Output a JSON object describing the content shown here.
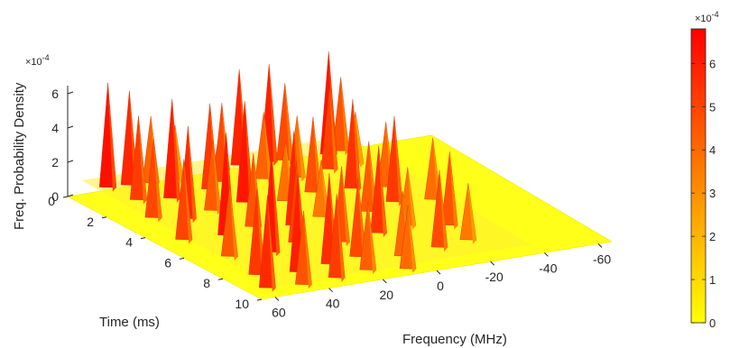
{
  "chart_data": {
    "type": "surface",
    "xlabel": "Frequency (MHz)",
    "ylabel": "Time (ms)",
    "zlabel": "Freq. Probability Density",
    "z_multiplier_label": "×10",
    "z_multiplier_exponent": "-4",
    "x_ticks": [
      "60",
      "40",
      "20",
      "0",
      "-20",
      "-40",
      "-60"
    ],
    "x_tick_values": [
      60,
      40,
      20,
      0,
      -20,
      -40,
      -60
    ],
    "y_ticks": [
      "0",
      "2",
      "4",
      "6",
      "8",
      "10"
    ],
    "y_tick_values": [
      0,
      2,
      4,
      6,
      8,
      10
    ],
    "z_ticks": [
      "0",
      "2",
      "4",
      "6"
    ],
    "z_tick_values": [
      0,
      2,
      4,
      6
    ],
    "xlim": [
      -65,
      65
    ],
    "ylim": [
      0,
      10
    ],
    "zlim": [
      0,
      6.5
    ],
    "colormap": "autumn (yellow to red, reversed)",
    "colorbar": {
      "ticks": [
        "0",
        "1",
        "2",
        "3",
        "4",
        "5",
        "6"
      ],
      "tick_values": [
        0,
        1,
        2,
        3,
        4,
        5,
        6
      ],
      "range": [
        0,
        6.8
      ],
      "multiplier_label": "×10",
      "multiplier_exponent": "-4",
      "low_color": "#ffff00",
      "high_color": "#ff0000"
    },
    "description_note": "Baseline density near 0; many sharp spikes between roughly -35 and 60 MHz across the full time span, peaks up to about 6.5e-4.",
    "peaks": [
      {
        "f": 52,
        "t": 0.2,
        "z": 6.4
      },
      {
        "f": 45,
        "t": 0.3,
        "z": 5.8
      },
      {
        "f": 38,
        "t": 0.4,
        "z": 4.2
      },
      {
        "f": 30,
        "t": 0.5,
        "z": 3.5
      },
      {
        "f": 12,
        "t": 0.3,
        "z": 3.2
      },
      {
        "f": 5,
        "t": 0.2,
        "z": 5.9
      },
      {
        "f": -5,
        "t": 0.3,
        "z": 6.0
      },
      {
        "f": -10,
        "t": 0.4,
        "z": 4.8
      },
      {
        "f": -25,
        "t": 0.5,
        "z": 6.3
      },
      {
        "f": -30,
        "t": 0.4,
        "z": 4.6
      },
      {
        "f": 50,
        "t": 1.5,
        "z": 5.2
      },
      {
        "f": 40,
        "t": 1.8,
        "z": 6.1
      },
      {
        "f": 25,
        "t": 1.6,
        "z": 5.3
      },
      {
        "f": 18,
        "t": 1.2,
        "z": 4.9
      },
      {
        "f": 5,
        "t": 1.5,
        "z": 4.2
      },
      {
        "f": -5,
        "t": 1.8,
        "z": 3.9
      },
      {
        "f": -18,
        "t": 1.6,
        "z": 5.1
      },
      {
        "f": -28,
        "t": 1.5,
        "z": 3.3
      },
      {
        "f": 55,
        "t": 3.0,
        "z": 4.9
      },
      {
        "f": 46,
        "t": 3.5,
        "z": 5.7
      },
      {
        "f": 35,
        "t": 3.2,
        "z": 4.4
      },
      {
        "f": 22,
        "t": 3.0,
        "z": 6.2
      },
      {
        "f": 10,
        "t": 3.4,
        "z": 3.8
      },
      {
        "f": -2,
        "t": 3.1,
        "z": 4.7
      },
      {
        "f": -15,
        "t": 3.3,
        "z": 5.5
      },
      {
        "f": -25,
        "t": 3.6,
        "z": 4.1
      },
      {
        "f": 58,
        "t": 5.0,
        "z": 5.0
      },
      {
        "f": 44,
        "t": 5.2,
        "z": 6.3
      },
      {
        "f": 32,
        "t": 4.9,
        "z": 4.6
      },
      {
        "f": 20,
        "t": 5.3,
        "z": 5.8
      },
      {
        "f": 8,
        "t": 5.0,
        "z": 3.6
      },
      {
        "f": -8,
        "t": 5.2,
        "z": 4.4
      },
      {
        "f": -20,
        "t": 4.8,
        "z": 5.3
      },
      {
        "f": -32,
        "t": 5.1,
        "z": 3.9
      },
      {
        "f": 54,
        "t": 6.8,
        "z": 4.5
      },
      {
        "f": 40,
        "t": 7.0,
        "z": 6.2
      },
      {
        "f": 28,
        "t": 6.6,
        "z": 5.1
      },
      {
        "f": 15,
        "t": 7.1,
        "z": 4.7
      },
      {
        "f": 0,
        "t": 6.9,
        "z": 5.4
      },
      {
        "f": -12,
        "t": 6.7,
        "z": 3.7
      },
      {
        "f": -24,
        "t": 7.2,
        "z": 4.6
      },
      {
        "f": 56,
        "t": 8.5,
        "z": 5.3
      },
      {
        "f": 43,
        "t": 8.8,
        "z": 6.0
      },
      {
        "f": 30,
        "t": 8.6,
        "z": 5.6
      },
      {
        "f": 18,
        "t": 8.4,
        "z": 4.9
      },
      {
        "f": 5,
        "t": 8.9,
        "z": 4.1
      },
      {
        "f": -10,
        "t": 8.7,
        "z": 4.8
      },
      {
        "f": -22,
        "t": 8.5,
        "z": 3.6
      },
      {
        "f": 60,
        "t": 9.6,
        "z": 5.7
      },
      {
        "f": 48,
        "t": 9.8,
        "z": 4.6
      },
      {
        "f": 35,
        "t": 9.7,
        "z": 5.2
      },
      {
        "f": 22,
        "t": 9.5,
        "z": 4.3
      },
      {
        "f": 10,
        "t": 9.9,
        "z": 4.0
      }
    ]
  }
}
